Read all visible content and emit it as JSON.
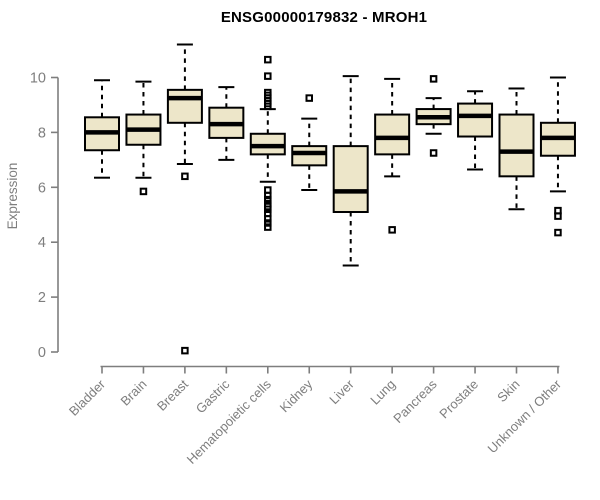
{
  "chart_data": {
    "type": "boxplot",
    "title": "ENSG00000179832 - MROH1",
    "xlabel": "",
    "ylabel": "Expression",
    "ylim": [
      0,
      10
    ],
    "yticks": [
      0,
      2,
      4,
      6,
      8,
      10
    ],
    "grid": false,
    "legend": "none",
    "categories": [
      "Bladder",
      "Brain",
      "Breast",
      "Gastric",
      "Hematopoietic cells",
      "Kidney",
      "Liver",
      "Lung",
      "Pancreas",
      "Prostate",
      "Skin",
      "Unknown / Other"
    ],
    "boxes": [
      {
        "category": "Bladder",
        "whisker_low": 6.35,
        "q1": 7.35,
        "median": 8.0,
        "q3": 8.55,
        "whisker_high": 9.9,
        "outliers": []
      },
      {
        "category": "Brain",
        "whisker_low": 6.35,
        "q1": 7.55,
        "median": 8.1,
        "q3": 8.65,
        "whisker_high": 9.85,
        "outliers": [
          5.85
        ]
      },
      {
        "category": "Breast",
        "whisker_low": 6.85,
        "q1": 8.35,
        "median": 9.25,
        "q3": 9.55,
        "whisker_high": 11.2,
        "outliers": [
          6.4,
          0.05
        ]
      },
      {
        "category": "Gastric",
        "whisker_low": 7.0,
        "q1": 7.8,
        "median": 8.3,
        "q3": 8.9,
        "whisker_high": 9.65,
        "outliers": []
      },
      {
        "category": "Hematopoietic cells",
        "whisker_low": 6.2,
        "q1": 7.2,
        "median": 7.5,
        "q3": 7.95,
        "whisker_high": 8.85,
        "outliers": [
          10.65,
          10.05,
          9.45,
          9.35,
          9.25,
          9.15,
          9.05,
          8.95,
          5.9,
          5.7,
          5.55,
          5.4,
          5.3,
          5.2,
          5.05,
          4.85,
          4.7,
          4.55
        ]
      },
      {
        "category": "Kidney",
        "whisker_low": 5.9,
        "q1": 6.8,
        "median": 7.25,
        "q3": 7.5,
        "whisker_high": 8.5,
        "outliers": [
          9.25
        ]
      },
      {
        "category": "Liver",
        "whisker_low": 3.15,
        "q1": 5.1,
        "median": 5.85,
        "q3": 7.5,
        "whisker_high": 10.05,
        "outliers": []
      },
      {
        "category": "Lung",
        "whisker_low": 6.4,
        "q1": 7.2,
        "median": 7.8,
        "q3": 8.65,
        "whisker_high": 9.95,
        "outliers": [
          4.45
        ]
      },
      {
        "category": "Pancreas",
        "whisker_low": 7.95,
        "q1": 8.3,
        "median": 8.55,
        "q3": 8.85,
        "whisker_high": 9.25,
        "outliers": [
          9.95,
          7.25
        ]
      },
      {
        "category": "Prostate",
        "whisker_low": 6.65,
        "q1": 7.85,
        "median": 8.6,
        "q3": 9.05,
        "whisker_high": 9.5,
        "outliers": []
      },
      {
        "category": "Skin",
        "whisker_low": 5.2,
        "q1": 6.4,
        "median": 7.3,
        "q3": 8.65,
        "whisker_high": 9.6,
        "outliers": []
      },
      {
        "category": "Unknown / Other",
        "whisker_low": 5.85,
        "q1": 7.15,
        "median": 7.8,
        "q3": 8.35,
        "whisker_high": 10.0,
        "outliers": [
          5.15,
          4.95,
          4.35
        ]
      }
    ],
    "colors": {
      "box_fill": "#EDE6C9",
      "box_border": "#000000",
      "median": "#000000",
      "whisker": "#000000",
      "outlier": "#000000",
      "axis": "#7E7E7E",
      "tick_label": "#7E7E7E",
      "axis_label": "#7E7E7E",
      "title": "#000000",
      "background": "#FFFFFF"
    }
  }
}
